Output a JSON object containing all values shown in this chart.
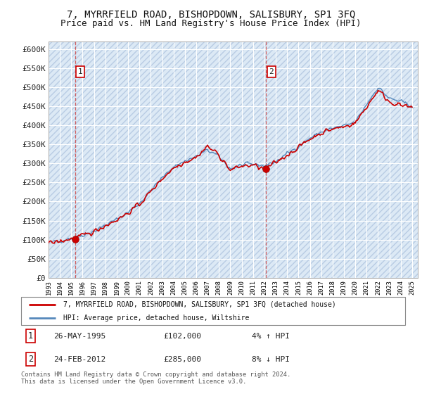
{
  "title": "7, MYRRFIELD ROAD, BISHOPDOWN, SALISBURY, SP1 3FQ",
  "subtitle": "Price paid vs. HM Land Registry's House Price Index (HPI)",
  "title_fontsize": 10,
  "subtitle_fontsize": 9,
  "ylim": [
    0,
    620000
  ],
  "yticks": [
    0,
    50000,
    100000,
    150000,
    200000,
    250000,
    300000,
    350000,
    400000,
    450000,
    500000,
    550000,
    600000
  ],
  "ytick_labels": [
    "£0",
    "£50K",
    "£100K",
    "£150K",
    "£200K",
    "£250K",
    "£300K",
    "£350K",
    "£400K",
    "£450K",
    "£500K",
    "£550K",
    "£600K"
  ],
  "background_color": "#dce9f5",
  "grid_color": "#ffffff",
  "sale1_x": 1995.38,
  "sale1_price": 102000,
  "sale2_x": 2012.12,
  "sale2_price": 285000,
  "legend_line1": "7, MYRRFIELD ROAD, BISHOPDOWN, SALISBURY, SP1 3FQ (detached house)",
  "legend_line2": "HPI: Average price, detached house, Wiltshire",
  "note1_date": "26-MAY-1995",
  "note1_price": "£102,000",
  "note1_hpi": "4% ↑ HPI",
  "note2_date": "24-FEB-2012",
  "note2_price": "£285,000",
  "note2_hpi": "8% ↓ HPI",
  "footer": "Contains HM Land Registry data © Crown copyright and database right 2024.\nThis data is licensed under the Open Government Licence v3.0.",
  "sale_line_color": "#cc0000",
  "hpi_line_color": "#5588bb",
  "sale_point_color": "#cc0000",
  "xmin": 1993.0,
  "xmax": 2025.5,
  "xtick_years": [
    1993,
    1994,
    1995,
    1996,
    1997,
    1998,
    1999,
    2000,
    2001,
    2002,
    2003,
    2004,
    2005,
    2006,
    2007,
    2008,
    2009,
    2010,
    2011,
    2012,
    2013,
    2014,
    2015,
    2016,
    2017,
    2018,
    2019,
    2020,
    2021,
    2022,
    2023,
    2024,
    2025
  ]
}
